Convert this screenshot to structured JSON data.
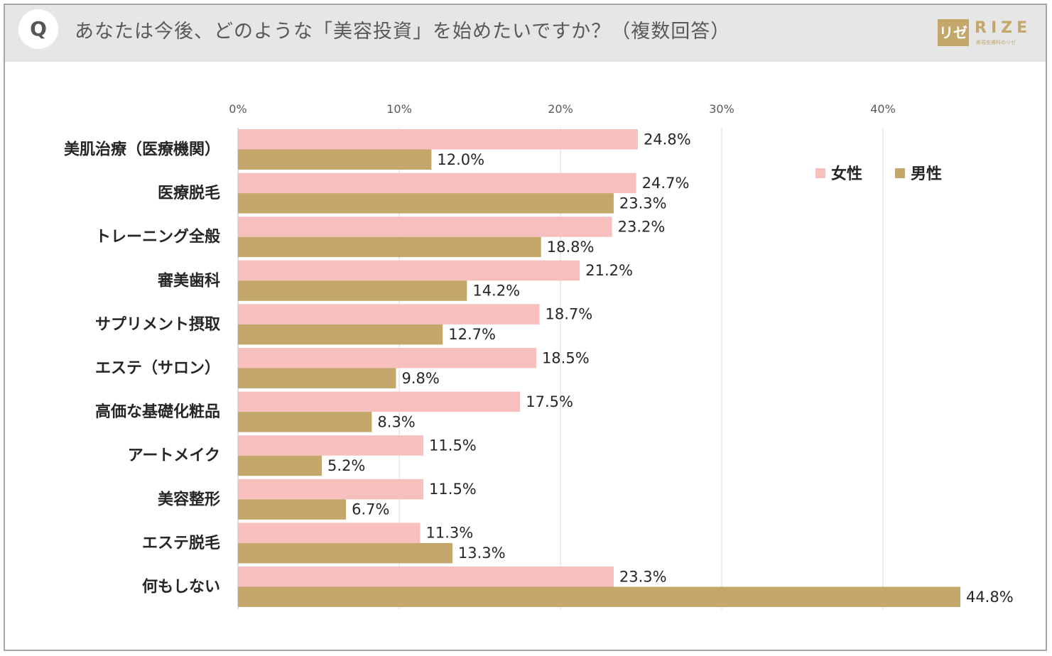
{
  "header": {
    "badge": "Q",
    "question": "あなたは今後、どのような「美容投資」を始めたいですか？（複数回答）",
    "logo_mark": "リゼ",
    "logo_word": "RIZE",
    "logo_sub": "美容皮膚科のリゼ"
  },
  "colors": {
    "female": "#f8bfbf",
    "male": "#c4a76b",
    "grid": "#d9d9d9",
    "header_bg": "#e6e6e6"
  },
  "chart_data": {
    "type": "bar",
    "orientation": "horizontal",
    "title": "",
    "xlabel": "",
    "ylabel": "",
    "xlim": [
      0,
      45
    ],
    "ticks": [
      0,
      10,
      20,
      30,
      40
    ],
    "tick_labels": [
      "0%",
      "10%",
      "20%",
      "30%",
      "40%"
    ],
    "grid": true,
    "legend_position": "top-right",
    "categories": [
      "美肌治療（医療機関）",
      "医療脱毛",
      "トレーニング全般",
      "審美歯科",
      "サプリメント摂取",
      "エステ（サロン）",
      "高価な基礎化粧品",
      "アートメイク",
      "美容整形",
      "エステ脱毛",
      "何もしない"
    ],
    "series": [
      {
        "name": "女性",
        "values": [
          24.8,
          24.7,
          23.2,
          21.2,
          18.7,
          18.5,
          17.5,
          11.5,
          11.5,
          11.3,
          23.3
        ],
        "labels": [
          "24.8%",
          "24.7%",
          "23.2%",
          "21.2%",
          "18.7%",
          "18.5%",
          "17.5%",
          "11.5%",
          "11.5%",
          "11.3%",
          "23.3%"
        ]
      },
      {
        "name": "男性",
        "values": [
          12.0,
          23.3,
          18.8,
          14.2,
          12.7,
          9.8,
          8.3,
          5.2,
          6.7,
          13.3,
          44.8
        ],
        "labels": [
          "12.0%",
          "23.3%",
          "18.8%",
          "14.2%",
          "12.7%",
          "9.8%",
          "8.3%",
          "5.2%",
          "6.7%",
          "13.3%",
          "44.8%"
        ]
      }
    ]
  }
}
